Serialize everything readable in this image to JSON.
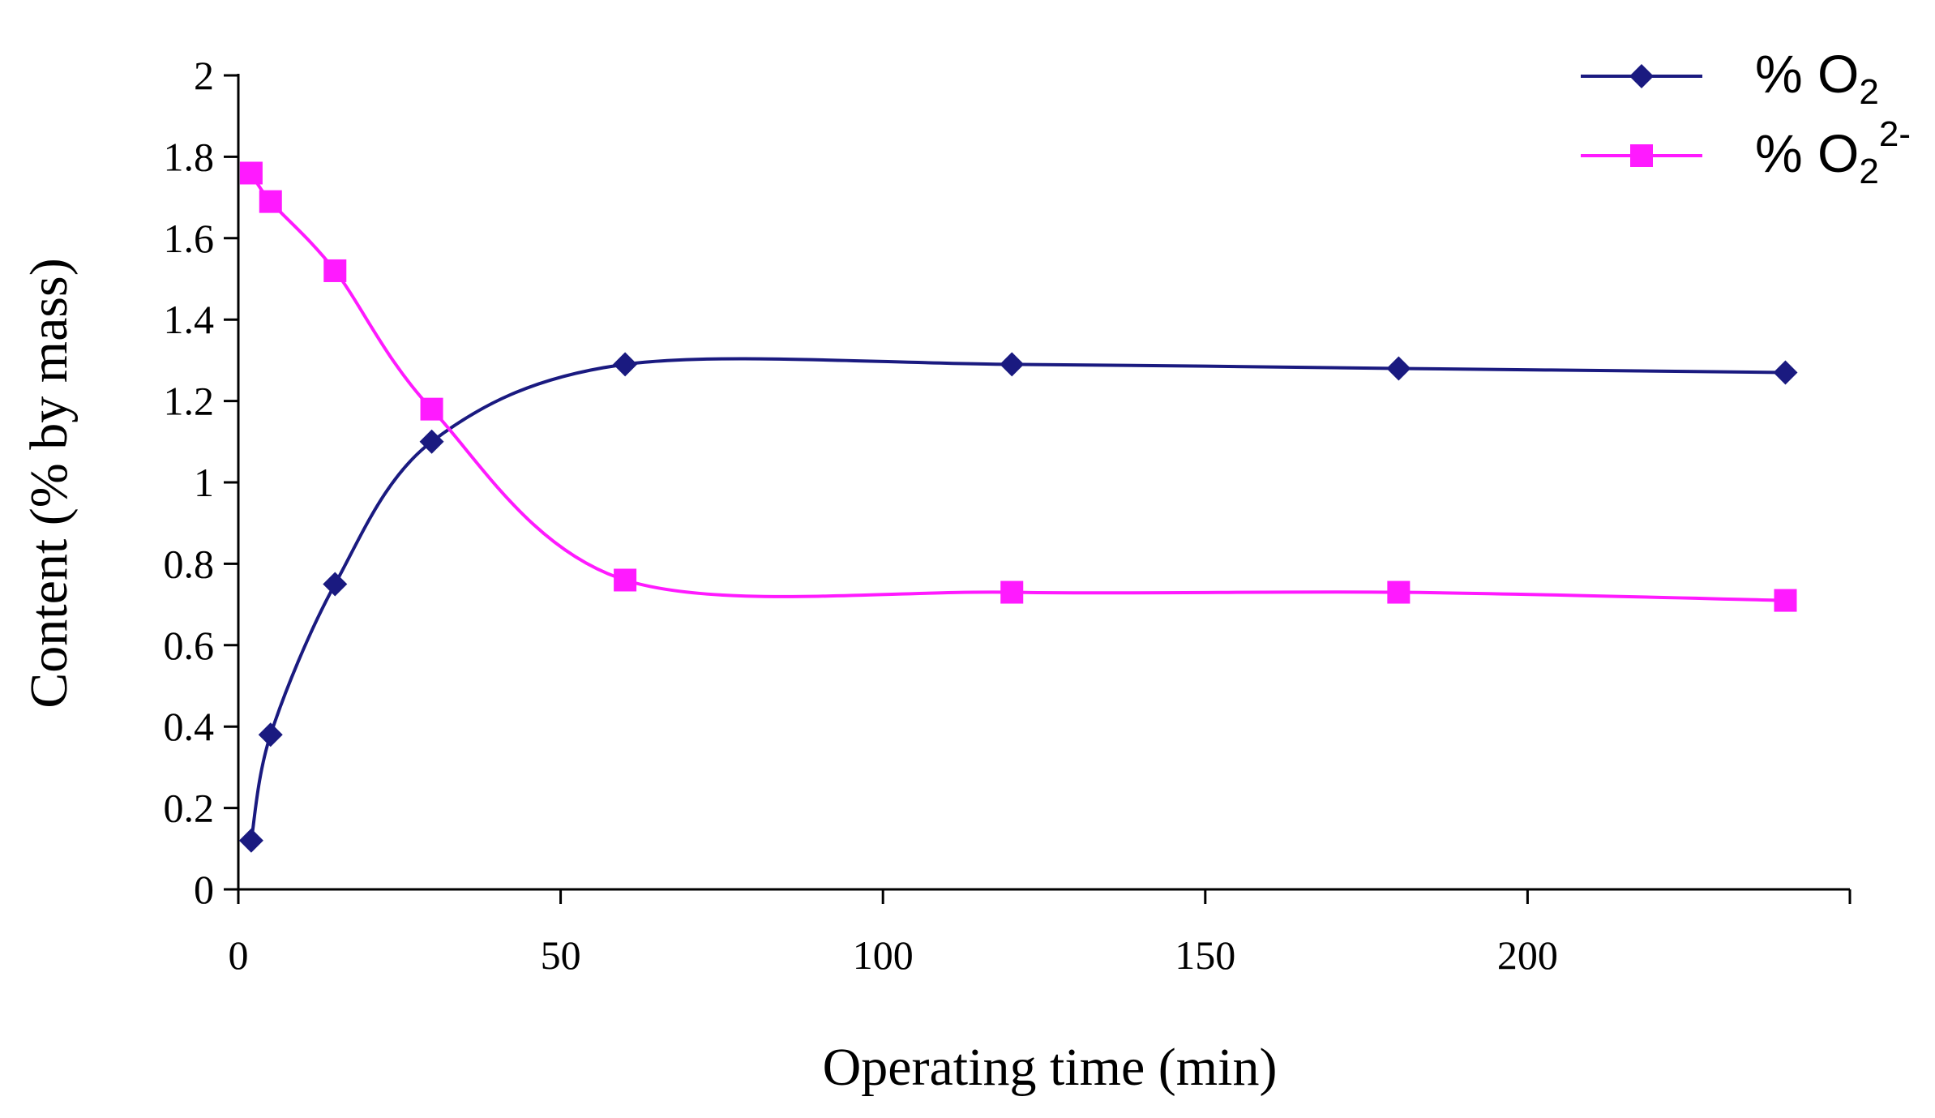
{
  "chart_data": {
    "type": "line",
    "title": "",
    "xlabel": "Operating time (min)",
    "ylabel": "Content (% by mass)",
    "xlim": [
      0,
      250
    ],
    "ylim": [
      0,
      2
    ],
    "x_ticks": [
      0,
      50,
      100,
      150,
      200
    ],
    "x_tick_labels": [
      "0",
      "50",
      "100",
      "150",
      "200"
    ],
    "y_ticks": [
      0,
      0.2,
      0.4,
      0.6,
      0.8,
      1,
      1.2,
      1.4,
      1.6,
      1.8,
      2
    ],
    "y_tick_labels": [
      "0",
      "0.2",
      "0.4",
      "0.6",
      "0.8",
      "1",
      "1.2",
      "1.4",
      "1.6",
      "1.8",
      "2"
    ],
    "grid": false,
    "legend_position": "top-right",
    "smooth": true,
    "series": [
      {
        "name": "% O2",
        "label_main": "% O",
        "label_sub": "2",
        "label_sup": "",
        "color": "#1a1a80",
        "marker": "diamond",
        "x": [
          2,
          5,
          15,
          30,
          60,
          120,
          180,
          240
        ],
        "y": [
          0.12,
          0.38,
          0.75,
          1.1,
          1.29,
          1.29,
          1.28,
          1.27
        ]
      },
      {
        "name": "% O2 2-",
        "label_main": "% O",
        "label_sub": "2",
        "label_sup": "2-",
        "color": "#ff1aff",
        "marker": "square",
        "x": [
          2,
          5,
          15,
          30,
          60,
          120,
          180,
          240
        ],
        "y": [
          1.76,
          1.69,
          1.52,
          1.18,
          0.76,
          0.73,
          0.73,
          0.71
        ]
      }
    ]
  }
}
